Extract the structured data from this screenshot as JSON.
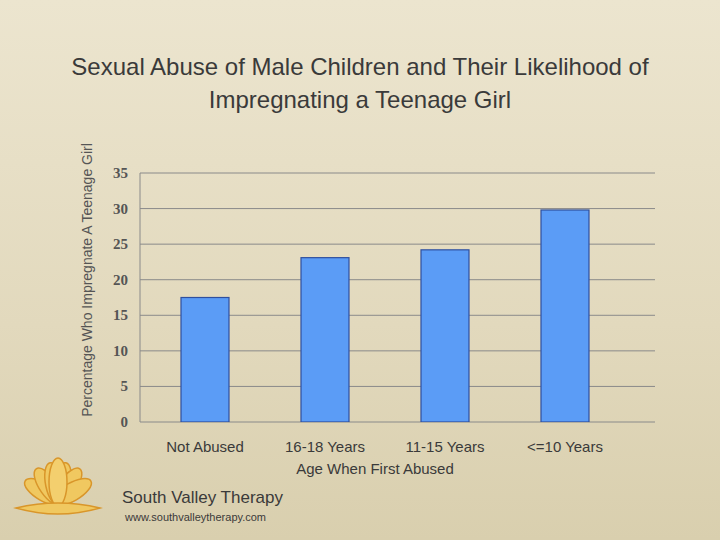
{
  "chart_data": {
    "type": "bar",
    "title": "Sexual Abuse of Male Children and Their Likelihood of Impregnating a Teenage Girl",
    "x_label": "Age When First Abused",
    "y_label": "Percentage Who Impregnate A Teenage Girl",
    "categories": [
      "Not Abused",
      "16-18 Years",
      "11-15 Years",
      "<=10 Years"
    ],
    "values": [
      17.5,
      23.1,
      24.2,
      29.8
    ],
    "color": "#5b9cf6",
    "ylim": [
      0,
      35
    ],
    "yticks": [
      0,
      5,
      10,
      15,
      20,
      25,
      30,
      35
    ],
    "grid": true,
    "annotations": [
      "South Valley Therapy",
      "www.southvalleytherapy.com"
    ]
  }
}
